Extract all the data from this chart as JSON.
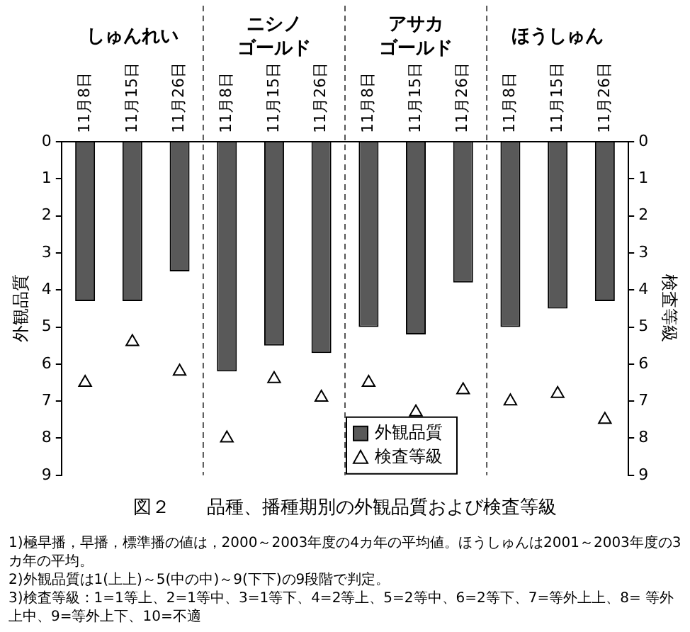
{
  "chart_data": {
    "type": "bar",
    "title": "図２　　品種、播種期別の外観品質および検査等級",
    "categories": [
      "11月8日",
      "11月15日",
      "11月26日",
      "11月8日",
      "11月15日",
      "11月26日",
      "11月8日",
      "11月15日",
      "11月26日",
      "11月8日",
      "11月15日",
      "11月26日"
    ],
    "series": [
      {
        "name": "外観品質",
        "color": "#595959",
        "values": [
          4.3,
          4.3,
          3.5,
          6.2,
          5.5,
          5.7,
          5.0,
          5.2,
          3.8,
          5.0,
          4.5,
          4.3
        ]
      },
      {
        "name": "検査等級",
        "type": "scatter",
        "color": "#000000",
        "values": [
          6.5,
          5.4,
          6.2,
          8.0,
          6.4,
          6.9,
          6.5,
          7.3,
          6.7,
          7.0,
          6.8,
          7.5
        ]
      }
    ],
    "ylabel": "外観品質",
    "y2label": "検査等級",
    "ylim": [
      9,
      0
    ],
    "yticks": [
      0,
      1,
      2,
      3,
      4,
      5,
      6,
      7,
      8,
      9
    ],
    "y2lim": [
      9,
      0
    ],
    "y2ticks": [
      0,
      1,
      2,
      3,
      4,
      5,
      6,
      7,
      8,
      9
    ],
    "marker": "triangle",
    "legend": "bottom",
    "annotations": [
      "しゅんれい",
      "ニシノゴールド",
      "アサカゴールド",
      "ほうしゅん",
      "1)極早播，早播，標準播の値は，2000～2003年度の4カ年の平均値。ほうしゅんは2001～2003年度の3カ年の平均。",
      "2)外観品質は1(上上)～5(中の中)～9(下下)の9段階で判定。",
      "3)検査等級：1=1等上、2=1等中、3=1等下、4=2等上、5=2等中、6=2等下、7=等外上上、8= 等外上中、9=等外上下、10=不適"
    ]
  }
}
